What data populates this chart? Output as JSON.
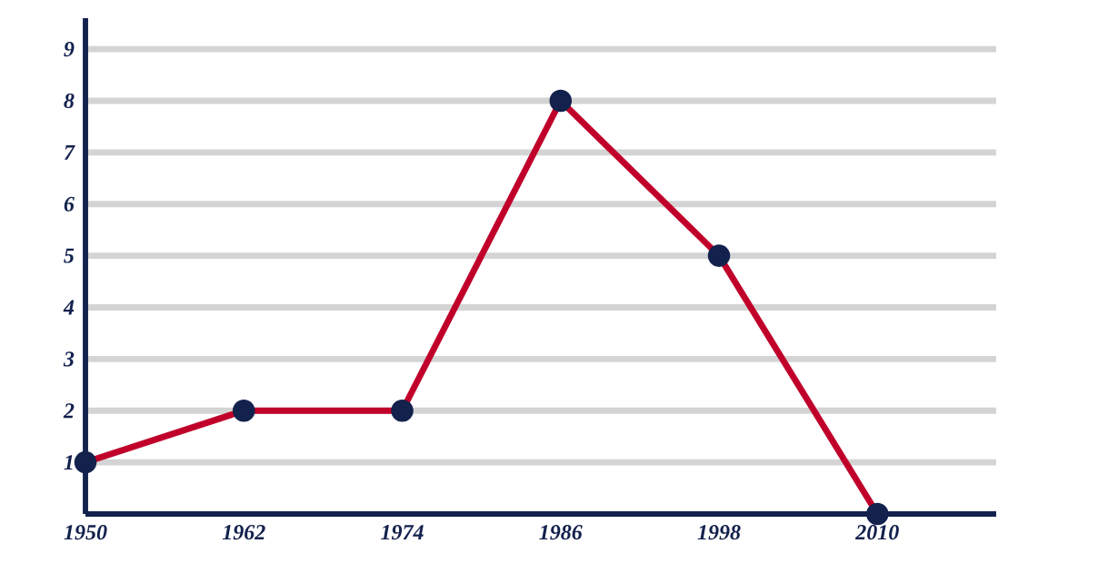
{
  "chart_data": {
    "type": "line",
    "x": [
      1950,
      1962,
      1974,
      1986,
      1998,
      2010
    ],
    "values": [
      1,
      2,
      2,
      8,
      5,
      0
    ],
    "color": "#c0002a",
    "marker": "circle",
    "line_style": "solid",
    "grid": "y",
    "xlim": [
      1950,
      2019
    ],
    "ylim": [
      0,
      9.6
    ],
    "xticks": [
      1950,
      1962,
      1974,
      1986,
      1998,
      2010
    ],
    "yticks": [
      1,
      2,
      3,
      4,
      5,
      6,
      7,
      8,
      9
    ]
  }
}
